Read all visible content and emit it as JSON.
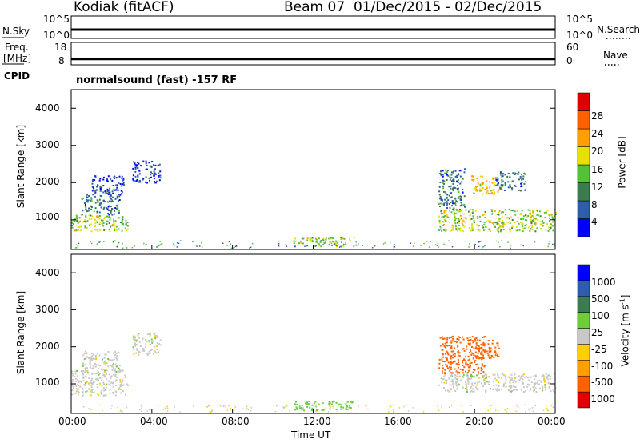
{
  "header": {
    "station": "Kodiak (fitACF)",
    "beam_date": "Beam 07  01/Dec/2015 - 02/Dec/2015"
  },
  "summary_panels": {
    "nsky_label": "N.Sky",
    "nsky_ticks": [
      "10^5",
      "10^0"
    ],
    "nsearch_label": "N.Search",
    "nsearch_ticks": [
      "10^5",
      "10^0"
    ],
    "freq_label_1": "Freq.",
    "freq_label_2": "[MHz]",
    "freq_ticks": [
      "18",
      "8"
    ],
    "nave_label": "Nave",
    "nave_ticks": [
      "60",
      "0"
    ],
    "cpid_label": "CPID",
    "cpid_value": "normalsound (fast) -157 RF"
  },
  "colors": {
    "power": [
      "#0000ff",
      "#2d5fa8",
      "#3a7d4e",
      "#55c03c",
      "#e8e000",
      "#ffa000",
      "#ff6000",
      "#e00000"
    ],
    "velocity": [
      "#e00000",
      "#ff6000",
      "#ffa000",
      "#ffd000",
      "#c8c8c8",
      "#6fcc3c",
      "#3a7d4e",
      "#2d5fa8",
      "#0000ff"
    ]
  },
  "chart_data": [
    {
      "type": "heatmap",
      "name": "Power",
      "ylabel": "Slant Range [km]",
      "yticks": [
        "4000",
        "3000",
        "2000",
        "1000"
      ],
      "ylim": [
        200,
        4500
      ],
      "colorbar_label": "Power [dB]",
      "colorbar_ticks": [
        "28",
        "24",
        "20",
        "16",
        "12",
        "8",
        "4"
      ],
      "colorbar_range": [
        0,
        32
      ],
      "regions": [
        {
          "t": [
            0.0,
            2.8
          ],
          "r": [
            700,
            1150
          ],
          "value": 16
        },
        {
          "t": [
            0.5,
            2.4
          ],
          "r": [
            1150,
            1700
          ],
          "value": 8
        },
        {
          "t": [
            1.0,
            2.6
          ],
          "r": [
            1700,
            2200
          ],
          "value": 4
        },
        {
          "t": [
            3.0,
            4.4
          ],
          "r": [
            2000,
            2600
          ],
          "value": 4
        },
        {
          "t": [
            11.0,
            14.0
          ],
          "r": [
            300,
            550
          ],
          "value": 16
        },
        {
          "t": [
            18.2,
            24.0
          ],
          "r": [
            700,
            1300
          ],
          "value": 16
        },
        {
          "t": [
            18.2,
            19.5
          ],
          "r": [
            1300,
            2400
          ],
          "value": 8
        },
        {
          "t": [
            19.8,
            21.2
          ],
          "r": [
            1700,
            2200
          ],
          "value": 20
        },
        {
          "t": [
            21.0,
            22.5
          ],
          "r": [
            1800,
            2300
          ],
          "value": 8
        }
      ]
    },
    {
      "type": "heatmap",
      "name": "Velocity",
      "ylabel": "Slant Range [km]",
      "yticks": [
        "4000",
        "3000",
        "2000",
        "1000"
      ],
      "ylim": [
        200,
        4500
      ],
      "xlabel": "Time UT",
      "xticks": [
        "00:00",
        "04:00",
        "08:00",
        "12:00",
        "16:00",
        "20:00",
        "00:00"
      ],
      "xlim": [
        0,
        24
      ],
      "colorbar_label": "Velocity [m s^-1]",
      "colorbar_ticks": [
        "1000",
        "500",
        "100",
        "25",
        "-25",
        "-100",
        "-500",
        "-1000"
      ],
      "regions": [
        {
          "t": [
            0.0,
            2.8
          ],
          "r": [
            700,
            1400
          ],
          "value": 0
        },
        {
          "t": [
            0.5,
            2.4
          ],
          "r": [
            1400,
            1900
          ],
          "value": 0
        },
        {
          "t": [
            3.0,
            4.4
          ],
          "r": [
            1800,
            2400
          ],
          "value": 0
        },
        {
          "t": [
            11.0,
            14.0
          ],
          "r": [
            300,
            550
          ],
          "value": 60
        },
        {
          "t": [
            18.2,
            24.0
          ],
          "r": [
            800,
            1300
          ],
          "value": 0
        },
        {
          "t": [
            18.2,
            20.5
          ],
          "r": [
            1300,
            2300
          ],
          "value": -200
        },
        {
          "t": [
            19.8,
            21.2
          ],
          "r": [
            1700,
            2200
          ],
          "value": -150
        }
      ]
    }
  ]
}
